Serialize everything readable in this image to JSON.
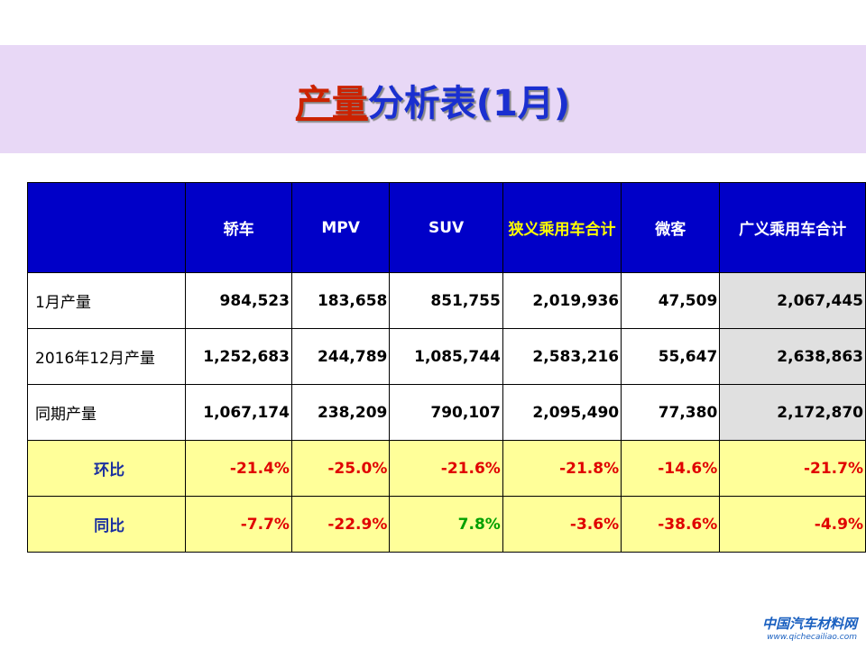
{
  "title": {
    "highlight": "产量",
    "rest": "分析表(1月)"
  },
  "table": {
    "header": [
      "",
      "轿车",
      "MPV",
      "SUV",
      "狭义乘用车合计",
      "微客",
      "广义乘用车合计"
    ],
    "rows": [
      [
        "1月产量",
        "984,523",
        "183,658",
        "851,755",
        "2,019,936",
        "47,509",
        "2,067,445"
      ],
      [
        "2016年12月产量",
        "1,252,683",
        "244,789",
        "1,085,744",
        "2,583,216",
        "55,647",
        "2,638,863"
      ],
      [
        "同期产量",
        "1,067,174",
        "238,209",
        "790,107",
        "2,095,490",
        "77,380",
        "2,172,870"
      ],
      [
        "环比",
        "-21.4%",
        "-25.0%",
        "-21.6%",
        "-21.8%",
        "-14.6%",
        "-21.7%"
      ],
      [
        "同比",
        "-7.7%",
        "-22.9%",
        "7.8%",
        "-3.6%",
        "-38.6%",
        "-4.9%"
      ]
    ]
  },
  "logo": {
    "name": "中国汽车材料网",
    "url": "www.qichecailiao.com"
  }
}
